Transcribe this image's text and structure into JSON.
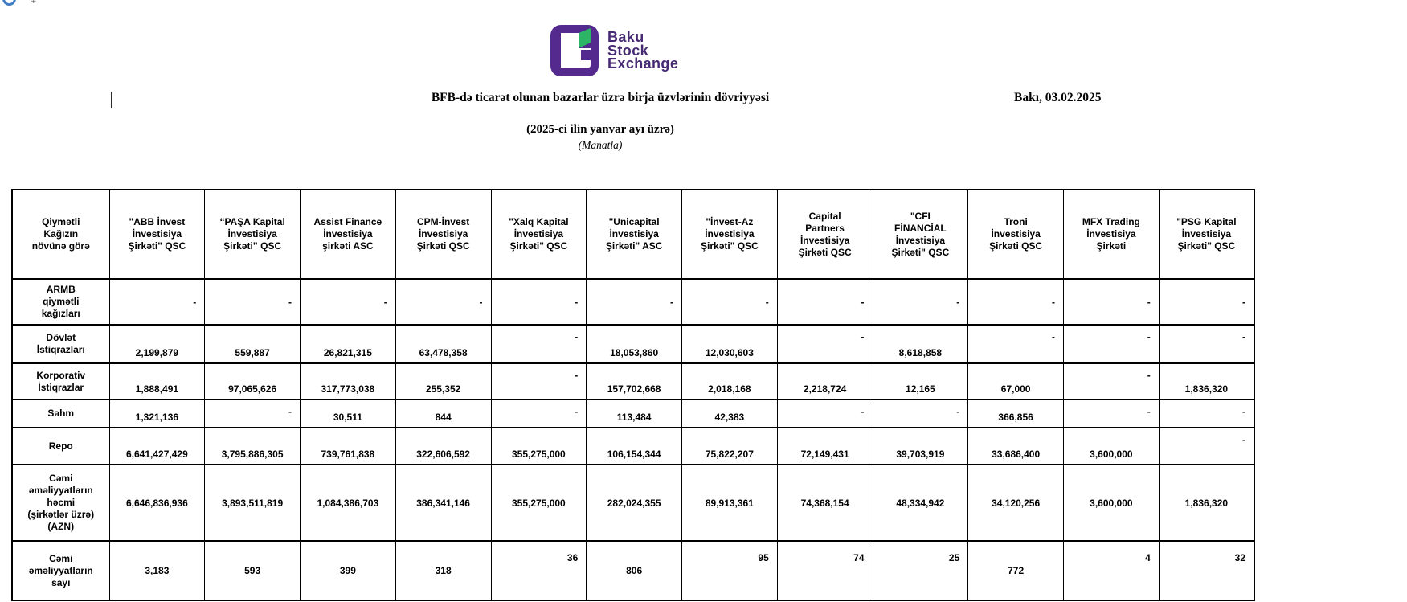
{
  "chrome": {
    "badge_icon": "blue-circle-icon",
    "tiny_glyph": "+"
  },
  "logo": {
    "line1": "Baku",
    "line2": "Stock",
    "line3": "Exchange",
    "purple": "#552a8e",
    "green": "#2cb567",
    "text_color": "#472a74"
  },
  "header": {
    "title": "BFB-də ticarət olunan bazarlar üzrə birja üzvlərinin dövriyyəsi",
    "date": "Bakı, 03.02.2025",
    "subtitle": "(2025-ci ilin yanvar ayı üzrə)",
    "unit_note": "(Manatla)"
  },
  "table": {
    "corner": "Qiymətli\nKağızın\nnövünə görə",
    "columns": [
      "\"ABB İnvest\nİnvestisiya\nŞirkəti\" QSC",
      "“PAŞA Kapital\nİnvestisiya\nŞirkəti” QSC",
      "Assist Finance\nİnvestisiya\nşirkəti ASC",
      "CPM-İnvest\nİnvestisiya\nŞirkəti QSC",
      "\"Xalq Kapital\nİnvestisiya\nŞirkəti\" QSC",
      "\"Unicapital\nİnvestisiya\nŞirkəti\" ASC",
      "\"İnvest-Az\nİnvestisiya\nŞirkəti\" QSC",
      "Capital\nPartners\nİnvestisiya\nŞirkəti QSC",
      "\"CFI\nFİNANCİAL\nİnvestisiya\nŞirkəti\" QSC",
      "Troni\nİnvestisiya\nŞirkəti QSC",
      "MFX Trading\nİnvestisiya\nŞirkəti",
      "\"PSG Kapital\nİnvestisiya\nŞirkəti\" QSC"
    ],
    "rows": [
      {
        "label": "ARMB\nqiymətli\nkağızları",
        "cells": [
          {
            "v": "-",
            "a": "dm"
          },
          {
            "v": "-",
            "a": "dm"
          },
          {
            "v": "-",
            "a": "dm"
          },
          {
            "v": "-",
            "a": "dm"
          },
          {
            "v": "-",
            "a": "dm"
          },
          {
            "v": "-",
            "a": "dm"
          },
          {
            "v": "-",
            "a": "dm"
          },
          {
            "v": "-",
            "a": "dm"
          },
          {
            "v": "-",
            "a": "dm"
          },
          {
            "v": "-",
            "a": "dm"
          },
          {
            "v": "-",
            "a": "dm"
          },
          {
            "v": "-",
            "a": "dm"
          }
        ]
      },
      {
        "label": "Dövlət\nİstiqrazları",
        "cells": [
          {
            "v": "2,199,879",
            "a": "nb"
          },
          {
            "v": "559,887",
            "a": "nb"
          },
          {
            "v": "26,821,315",
            "a": "nb"
          },
          {
            "v": "63,478,358",
            "a": "nb"
          },
          {
            "v": "-",
            "a": "dt"
          },
          {
            "v": "18,053,860",
            "a": "nb"
          },
          {
            "v": "12,030,603",
            "a": "nb"
          },
          {
            "v": "-",
            "a": "dt"
          },
          {
            "v": "8,618,858",
            "a": "nb"
          },
          {
            "v": "-",
            "a": "dt"
          },
          {
            "v": "-",
            "a": "dt"
          },
          {
            "v": "-",
            "a": "dt"
          }
        ]
      },
      {
        "label": "Korporativ\nİstiqrazlar",
        "cells": [
          {
            "v": "1,888,491",
            "a": "nb"
          },
          {
            "v": "97,065,626",
            "a": "nb"
          },
          {
            "v": "317,773,038",
            "a": "nb"
          },
          {
            "v": "255,352",
            "a": "nb"
          },
          {
            "v": "-",
            "a": "dt"
          },
          {
            "v": "157,702,668",
            "a": "nb"
          },
          {
            "v": "2,018,168",
            "a": "nb"
          },
          {
            "v": "2,218,724",
            "a": "nb"
          },
          {
            "v": "12,165",
            "a": "nb"
          },
          {
            "v": "67,000",
            "a": "nb"
          },
          {
            "v": "-",
            "a": "dt"
          },
          {
            "v": "1,836,320",
            "a": "nb"
          }
        ]
      },
      {
        "label": "Səhm",
        "cells": [
          {
            "v": "1,321,136",
            "a": "nb"
          },
          {
            "v": "-",
            "a": "dt"
          },
          {
            "v": "30,511",
            "a": "nb"
          },
          {
            "v": "844",
            "a": "nb"
          },
          {
            "v": "-",
            "a": "dt"
          },
          {
            "v": "113,484",
            "a": "nb"
          },
          {
            "v": "42,383",
            "a": "nb"
          },
          {
            "v": "-",
            "a": "dt"
          },
          {
            "v": "-",
            "a": "dt"
          },
          {
            "v": "366,856",
            "a": "nb"
          },
          {
            "v": "-",
            "a": "dt"
          },
          {
            "v": "-",
            "a": "dt"
          }
        ]
      },
      {
        "label": "Repo",
        "cells": [
          {
            "v": "6,641,427,429",
            "a": "nb"
          },
          {
            "v": "3,795,886,305",
            "a": "nb"
          },
          {
            "v": "739,761,838",
            "a": "nb"
          },
          {
            "v": "322,606,592",
            "a": "nb"
          },
          {
            "v": "355,275,000",
            "a": "nb"
          },
          {
            "v": "106,154,344",
            "a": "nb"
          },
          {
            "v": "75,822,207",
            "a": "nb"
          },
          {
            "v": "72,149,431",
            "a": "nb"
          },
          {
            "v": "39,703,919",
            "a": "nb"
          },
          {
            "v": "33,686,400",
            "a": "nb"
          },
          {
            "v": "3,600,000",
            "a": "nb"
          },
          {
            "v": "-",
            "a": "dt"
          }
        ]
      },
      {
        "label": "Cəmi\nəməliyyatların\nhəcmi\n(şirkətlər üzrə)\n(AZN)",
        "cells": [
          {
            "v": "6,646,836,936",
            "a": "mc"
          },
          {
            "v": "3,893,511,819",
            "a": "mc"
          },
          {
            "v": "1,084,386,703",
            "a": "mc"
          },
          {
            "v": "386,341,146",
            "a": "mc"
          },
          {
            "v": "355,275,000",
            "a": "mc"
          },
          {
            "v": "282,024,355",
            "a": "mc"
          },
          {
            "v": "89,913,361",
            "a": "mc"
          },
          {
            "v": "74,368,154",
            "a": "mc"
          },
          {
            "v": "48,334,942",
            "a": "mc"
          },
          {
            "v": "34,120,256",
            "a": "mc"
          },
          {
            "v": "3,600,000",
            "a": "mc"
          },
          {
            "v": "1,836,320",
            "a": "mc"
          }
        ]
      },
      {
        "label": "Cəmi\nəməliyyatların\nsayı",
        "cells": [
          {
            "v": "3,183",
            "a": "mc"
          },
          {
            "v": "593",
            "a": "mc"
          },
          {
            "v": "399",
            "a": "mc"
          },
          {
            "v": "318",
            "a": "mc"
          },
          {
            "v": "36",
            "a": "tr"
          },
          {
            "v": "806",
            "a": "mc"
          },
          {
            "v": "95",
            "a": "tr"
          },
          {
            "v": "74",
            "a": "tr"
          },
          {
            "v": "25",
            "a": "tr"
          },
          {
            "v": "772",
            "a": "mc"
          },
          {
            "v": "4",
            "a": "tr"
          },
          {
            "v": "32",
            "a": "tr"
          }
        ]
      }
    ]
  }
}
